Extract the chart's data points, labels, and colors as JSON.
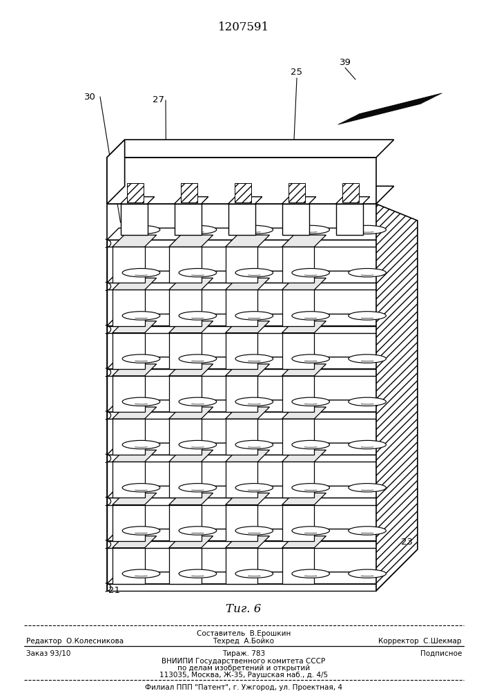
{
  "patent_number": "1207591",
  "figure_label": "Τиг. 6",
  "bg_color": "#ffffff",
  "line_color": "#000000",
  "footer": {
    "line0_center": "Составитель  В.Ерошкин",
    "line1_left": "Редактор  О.Колесникова",
    "line1_center": "Техред  А.Бойко",
    "line1_right": "Корректор  С.Шекмар",
    "line2_left": "Заказ 93/10",
    "line2_center": "Тираж. 783",
    "line2_right": "Подписное",
    "line3": "ВНИИПИ Государственного комитета СССР",
    "line4": "по делам изобретений и открытий",
    "line5": "113035, Москва, Ж-35, Раушская наб., д. 4/5",
    "line6": "Филиал ППП \"Патент\", г. Ужгород, ул. Проектная, 4"
  }
}
